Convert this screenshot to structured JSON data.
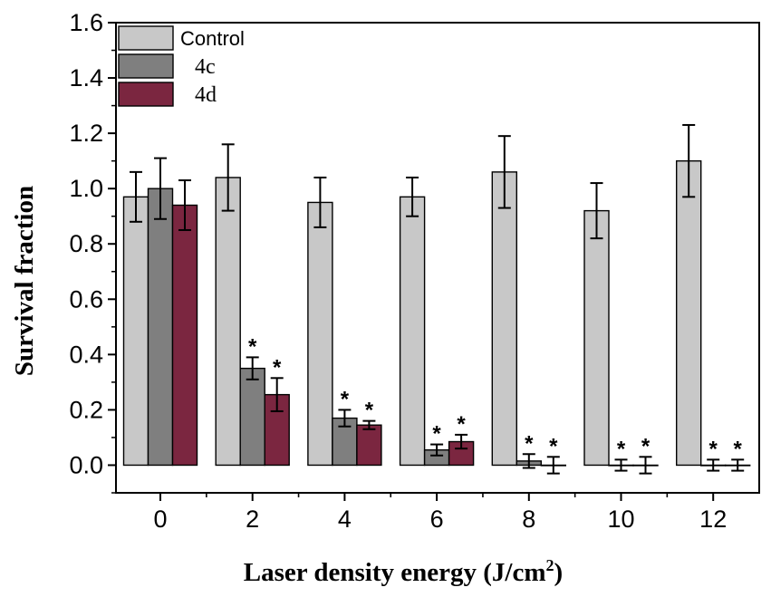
{
  "chart_data": {
    "type": "bar",
    "title": "",
    "xlabel": "Laser density energy (J/cm",
    "xlabel_superscript": "2",
    "xlabel_suffix": ")",
    "ylabel": "Survival fraction",
    "categories": [
      "0",
      "2",
      "4",
      "6",
      "8",
      "10",
      "12"
    ],
    "ylim": [
      -0.1,
      1.6
    ],
    "yticks": [
      "0.0",
      "0.2",
      "0.4",
      "0.6",
      "0.8",
      "1.0",
      "1.2",
      "1.4",
      "1.6"
    ],
    "legend_position": "top-left",
    "significance_marker": "*",
    "series": [
      {
        "name": "Control",
        "color": "#c8c8c8",
        "values": [
          0.97,
          1.04,
          0.95,
          0.97,
          1.06,
          0.92,
          1.1
        ],
        "errors": [
          0.09,
          0.12,
          0.09,
          0.07,
          0.13,
          0.1,
          0.13
        ],
        "significant": [
          false,
          false,
          false,
          false,
          false,
          false,
          false
        ]
      },
      {
        "name": "4c",
        "color": "#7f7f7f",
        "values": [
          1.0,
          0.35,
          0.17,
          0.055,
          0.015,
          0.0,
          0.0
        ],
        "errors": [
          0.11,
          0.04,
          0.03,
          0.02,
          0.025,
          0.02,
          0.02
        ],
        "significant": [
          false,
          true,
          true,
          true,
          true,
          true,
          true
        ]
      },
      {
        "name": "4d",
        "color": "#7b2640",
        "values": [
          0.94,
          0.255,
          0.145,
          0.085,
          0.0,
          0.0,
          0.0
        ],
        "errors": [
          0.09,
          0.06,
          0.015,
          0.025,
          0.03,
          0.03,
          0.02
        ],
        "significant": [
          false,
          true,
          true,
          true,
          true,
          true,
          true
        ]
      }
    ]
  }
}
